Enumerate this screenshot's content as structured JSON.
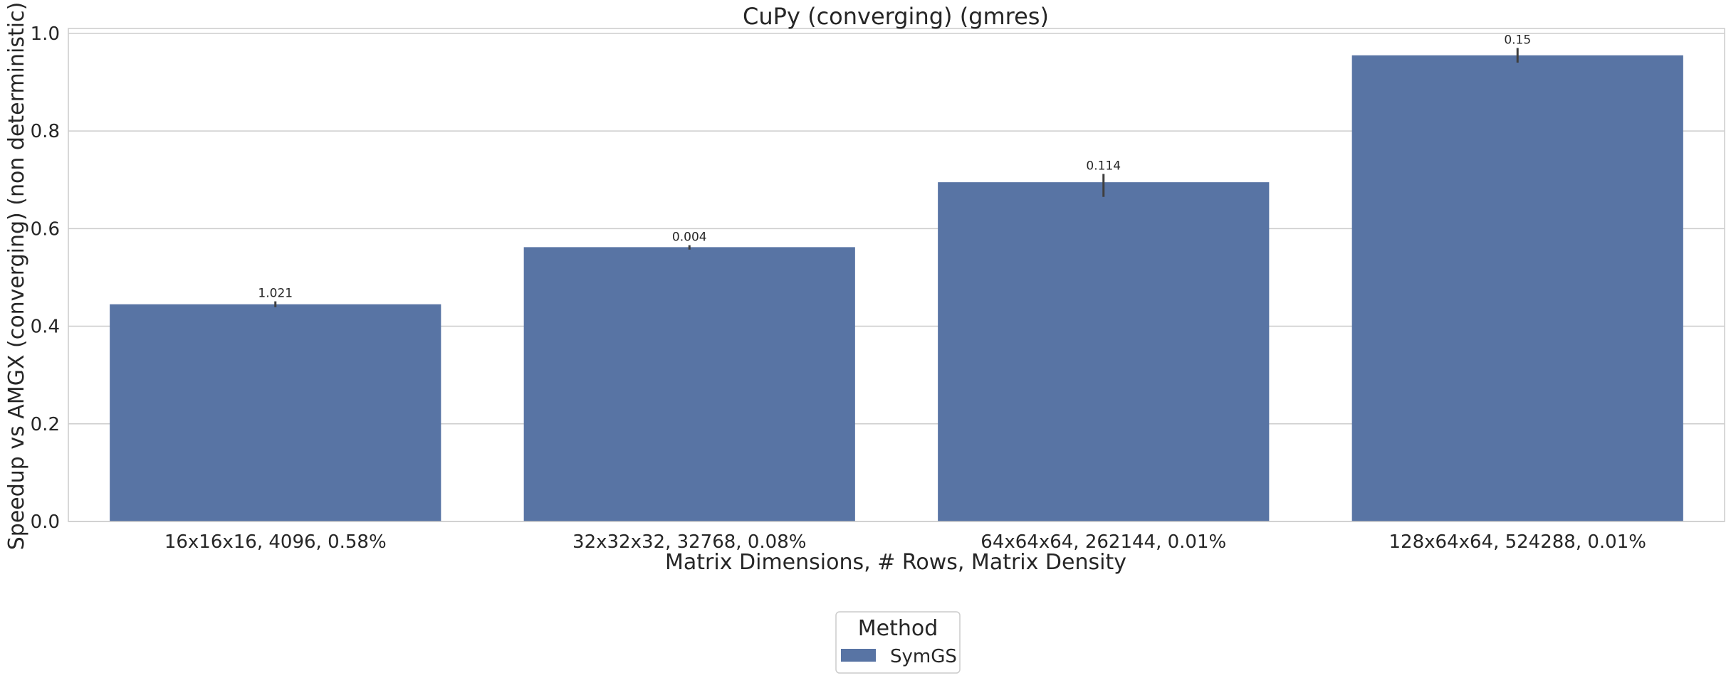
{
  "chart_data": {
    "type": "bar",
    "title": "CuPy (converging) (gmres)",
    "xlabel": "Matrix Dimensions, # Rows, Matrix Density",
    "ylabel": "Speedup vs AMGX (converging) (non deterministic)",
    "categories": [
      "16x16x16, 4096, 0.58%",
      "32x32x32, 32768, 0.08%",
      "64x64x64, 262144, 0.01%",
      "128x64x64, 524288, 0.01%"
    ],
    "series": [
      {
        "name": "SymGS",
        "color": "#5874a4",
        "values": [
          0.445,
          0.562,
          0.695,
          0.955
        ],
        "error_bars": [
          [
            0.439,
            0.451
          ],
          [
            0.557,
            0.566
          ],
          [
            0.665,
            0.712
          ],
          [
            0.94,
            0.97
          ]
        ],
        "data_labels": [
          "1.021",
          "0.004",
          "0.114",
          "0.15"
        ]
      }
    ],
    "ylim": [
      0,
      1.01
    ],
    "yticks": [
      0.0,
      0.2,
      0.4,
      0.6,
      0.8,
      1.0
    ],
    "ytick_labels": [
      "0.0",
      "0.2",
      "0.4",
      "0.6",
      "0.8",
      "1.0"
    ],
    "grid": "horizontal",
    "legend": {
      "title": "Method",
      "placement": "bottom-center"
    }
  }
}
